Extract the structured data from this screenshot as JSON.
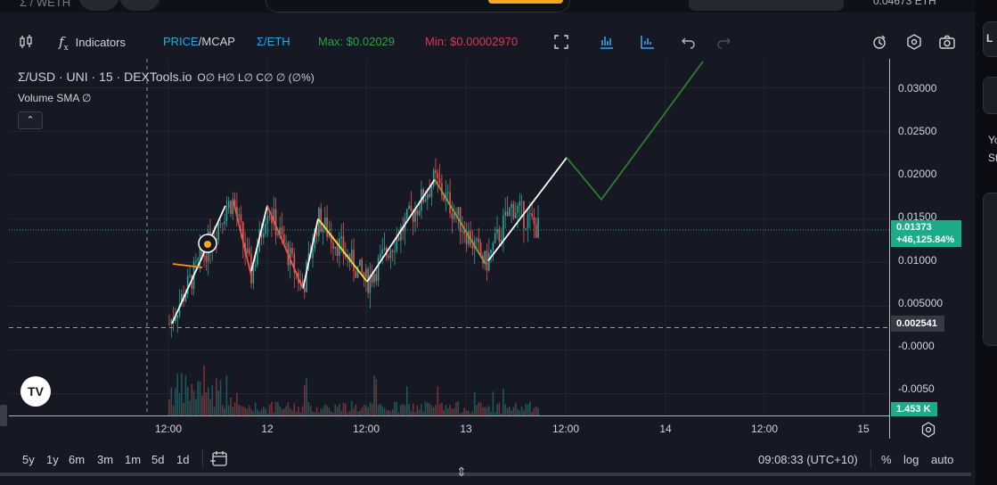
{
  "top": {
    "pair_label": "Σ / WETH",
    "balance": "0.04673 ETH"
  },
  "toolbar": {
    "indicators_label": "Indicators",
    "price_label": "PRICE",
    "slash": "/",
    "mcap_label": "MCAP",
    "currency_label": "Σ/ETH",
    "max_label": "Max: $0.02029",
    "min_label": "Min: $0.00002970"
  },
  "legend": {
    "title": "Σ/USD · UNI · 15 · DEXTools.io",
    "ohlc": "O∅ H∅ L∅ C∅ ∅ (∅%)",
    "volume": "Volume SMA  ∅"
  },
  "price_axis": {
    "labels": [
      "0.03000",
      "0.02500",
      "0.02000",
      "0.01500",
      "0.01000",
      "0.005000",
      "-0.0000",
      "-0.0050"
    ],
    "current_price": "0.01373",
    "current_change": "+46,125.84%",
    "crosshair_price": "0.002541",
    "volume_value": "1.453 K"
  },
  "time_axis": {
    "labels": [
      "12:00",
      "12",
      "12:00",
      "13",
      "12:00",
      "14",
      "12:00",
      "15"
    ]
  },
  "chart_data": {
    "type": "candlestick",
    "series_colors": {
      "up": "#26a69a",
      "down": "#ef5350"
    },
    "ylim": [
      -0.0075,
      0.0333
    ],
    "price_line": 0.01373,
    "crosshair_price": 0.002541,
    "max_price": 0.02029,
    "min_price": 2.97e-05,
    "zigzag_white": [
      [
        0.003,
        0.0165
      ],
      [
        0.0105,
        0.0155
      ]
    ],
    "zigzag_red": [
      [
        0.017,
        0.0085
      ],
      [
        0.0165,
        0.007
      ]
    ],
    "zigzag_yellow": [
      [
        0.015,
        0.0078
      ]
    ],
    "zigzag_olive": [
      [
        0.0195,
        0.0098
      ]
    ],
    "projection": [
      0.022,
      0.0172,
      0.033
    ]
  },
  "bottom": {
    "ranges": [
      "5y",
      "1y",
      "6m",
      "3m",
      "1m",
      "5d",
      "1d"
    ],
    "time": "09:08:33 (UTC+10)",
    "percent": "%",
    "log": "log",
    "auto": "auto"
  },
  "right_panel": {
    "line1": "L",
    "line2": "Yo",
    "line3": "St"
  }
}
